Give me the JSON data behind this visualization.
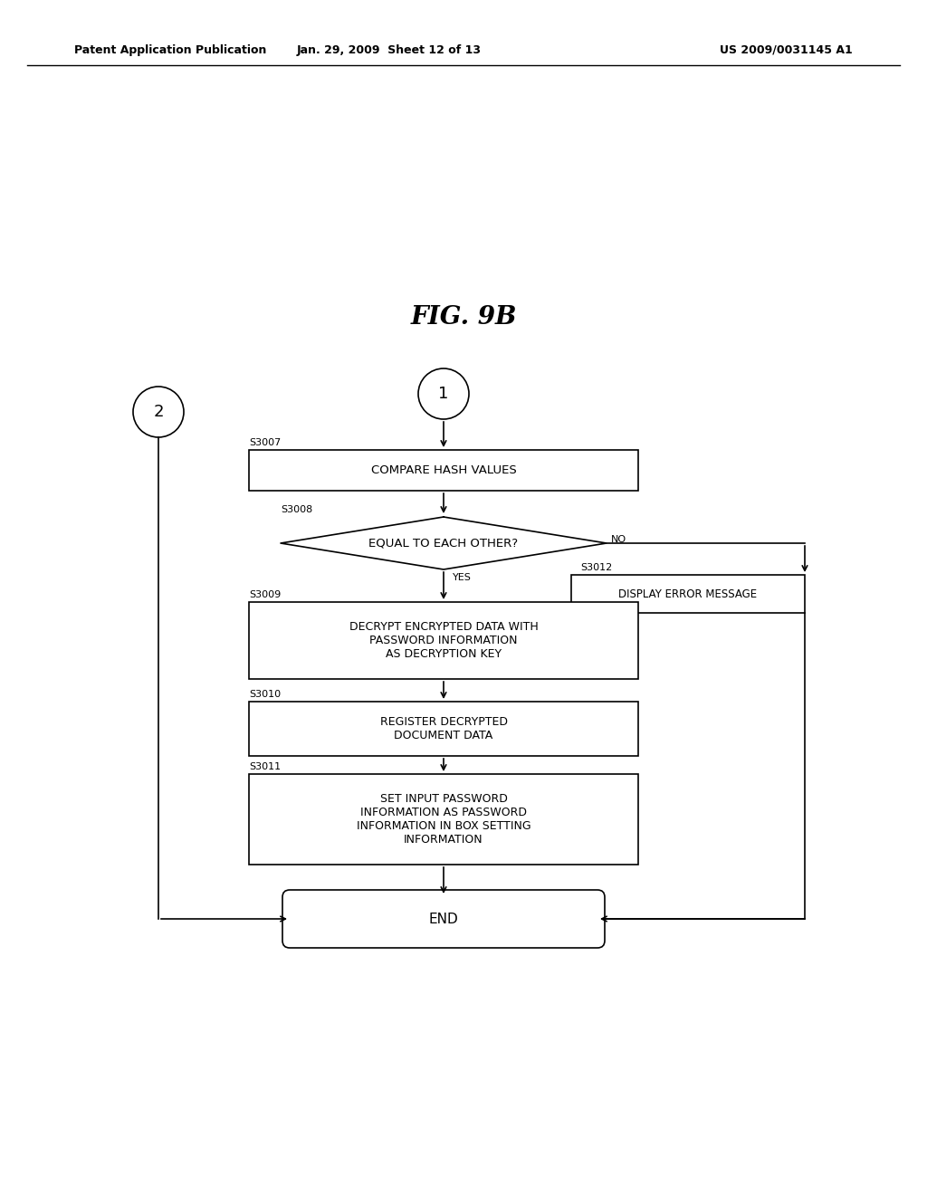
{
  "title": "FIG. 9B",
  "header_left": "Patent Application Publication",
  "header_mid": "Jan. 29, 2009  Sheet 12 of 13",
  "header_right": "US 2009/0031145 A1",
  "background": "#ffffff",
  "fig_width": 10.24,
  "fig_height": 13.2,
  "dpi": 100
}
